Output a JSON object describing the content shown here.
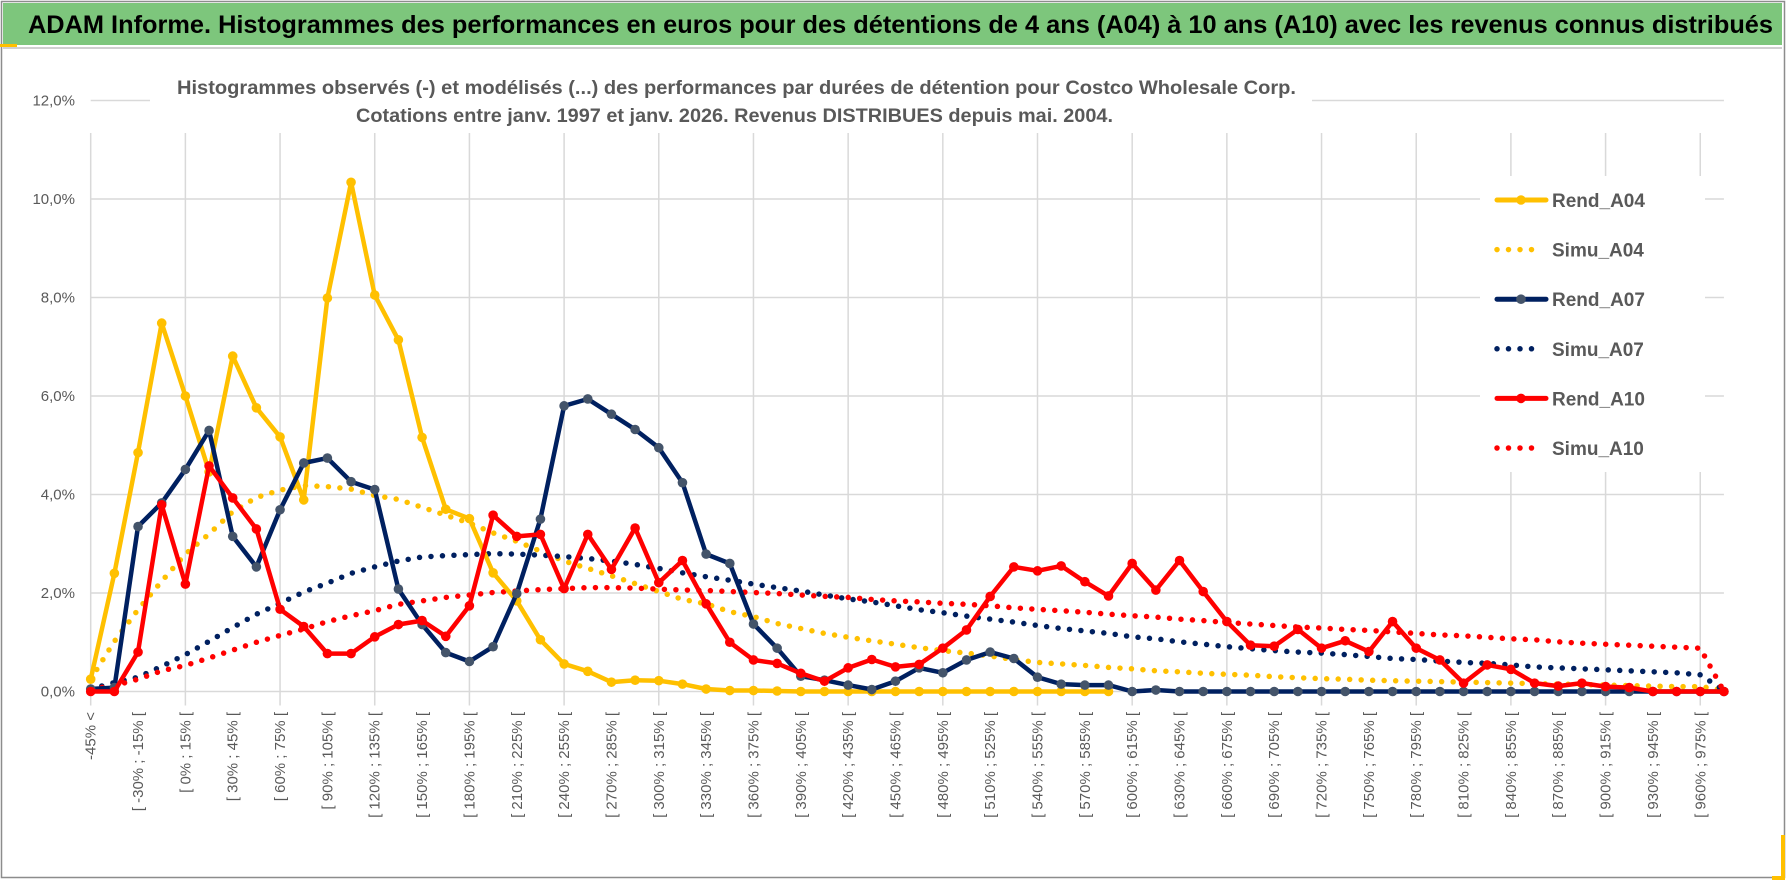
{
  "header": {
    "title": "ADAM Informe. Histogrammes des performances en euros pour des détentions de 4 ans (A04) à 10 ans (A10) avec les revenus connus distribués"
  },
  "colors": {
    "header_bg": "#7DC67C",
    "yellow": "#FFC000",
    "navy": "#002060",
    "navy_marker": "#44546A",
    "red": "#FF0000",
    "grid": "#D9D9D9",
    "text": "#595959"
  },
  "chart_data": {
    "type": "line",
    "title_line1": "Histogrammes observés (-) et modélisés (...) des performances par durées de détention pour Costco Wholesale Corp.",
    "title_line2": "Cotations entre janv. 1997 et janv. 2026. Revenus DISTRIBUES depuis mai. 2004.",
    "xlabel": "",
    "ylabel": "",
    "ylim": [
      0,
      12
    ],
    "y_ticks": [
      "0,0%",
      "2,0%",
      "4,0%",
      "6,0%",
      "8,0%",
      "10,0%",
      "12,0%"
    ],
    "x_bin_count": 70,
    "x_tick_every": 2,
    "x_tick_labels": [
      "-45% <",
      "[ -30% ; -15% [",
      "[ 0% ; 15% [",
      "[ 30% ; 45% [",
      "[ 60% ; 75% [",
      "[ 90% ; 105% [",
      "[ 120% ; 135% [",
      "[ 150% ; 165% [",
      "[ 180% ; 195% [",
      "[ 210% ; 225% [",
      "[ 240% ; 255% [",
      "[ 270% ; 285% [",
      "[ 300% ; 315% [",
      "[ 330% ; 345% [",
      "[ 360% ; 375% [",
      "[ 390% ; 405% [",
      "[ 420% ; 435% [",
      "[ 450% ; 465% [",
      "[ 480% ; 495% [",
      "[ 510% ; 525% [",
      "[ 540% ; 555% [",
      "[ 570% ; 585% [",
      "[ 600% ; 615% [",
      "[ 630% ; 645% [",
      "[ 660% ; 675% [",
      "[ 690% ; 705% [",
      "[ 720% ; 735% [",
      "[ 750% ; 765% [",
      "[ 780% ; 795% [",
      "[ 810% ; 825% [",
      "[ 840% ; 855% [",
      "[ 870% ; 885% [",
      "[ 900% ; 915% [",
      "[ 930% ; 945% [",
      "[ 960% ; 975% ["
    ],
    "grid": true,
    "legend_position": "right",
    "series": [
      {
        "name": "Rend_A04",
        "style": "solid",
        "color": "#FFC000",
        "marker": "#FFC000",
        "values": [
          0.25,
          2.4,
          4.85,
          7.48,
          6.0,
          4.46,
          6.81,
          5.76,
          5.17,
          3.89,
          7.99,
          10.34,
          8.05,
          7.14,
          5.16,
          3.7,
          3.51,
          2.41,
          1.84,
          1.05,
          0.56,
          0.41,
          0.19,
          0.23,
          0.22,
          0.15,
          0.05,
          0.02,
          0.02,
          0.01,
          0,
          0,
          0,
          0,
          0,
          0,
          0,
          0,
          0,
          0,
          0,
          0,
          0,
          0,
          null,
          null,
          null,
          null,
          null,
          null,
          null,
          null,
          null,
          null,
          null,
          null,
          null,
          null,
          null,
          null,
          null,
          null,
          null,
          null,
          null,
          null,
          null,
          null,
          null,
          null
        ]
      },
      {
        "name": "Simu_A04",
        "style": "dotted",
        "color": "#FFC000",
        "values": [
          0.25,
          1.02,
          1.66,
          2.24,
          2.79,
          3.2,
          3.65,
          3.94,
          4.09,
          4.18,
          4.16,
          4.11,
          3.98,
          3.9,
          3.74,
          3.58,
          3.42,
          3.22,
          3.05,
          2.85,
          2.65,
          2.5,
          2.35,
          2.19,
          2.03,
          1.87,
          1.78,
          1.62,
          1.52,
          1.38,
          1.28,
          1.18,
          1.1,
          1.03,
          0.96,
          0.89,
          0.83,
          0.78,
          0.72,
          0.65,
          0.59,
          0.56,
          0.53,
          0.49,
          0.46,
          0.42,
          0.4,
          0.37,
          0.35,
          0.33,
          0.3,
          0.28,
          0.26,
          0.25,
          0.23,
          0.22,
          0.21,
          0.2,
          0.19,
          0.18,
          0.17,
          0.16,
          0.15,
          0.14,
          0.13,
          0.12,
          0.11,
          0.1,
          0.1,
          0.03
        ]
      },
      {
        "name": "Rend_A07",
        "style": "solid",
        "color": "#002060",
        "marker": "#44546A",
        "values": [
          0.05,
          0.08,
          3.35,
          3.83,
          4.51,
          5.3,
          3.15,
          2.53,
          3.69,
          4.64,
          4.74,
          4.26,
          4.1,
          2.08,
          1.36,
          0.79,
          0.61,
          0.91,
          1.99,
          3.5,
          5.8,
          5.94,
          5.63,
          5.32,
          4.95,
          4.24,
          2.79,
          2.6,
          1.37,
          0.88,
          0.31,
          0.23,
          0.13,
          0.04,
          0.21,
          0.48,
          0.38,
          0.64,
          0.8,
          0.67,
          0.29,
          0.15,
          0.13,
          0.13,
          0,
          0.03,
          0,
          0,
          0,
          0,
          0,
          0,
          0,
          0,
          0,
          0,
          0,
          0,
          0,
          0,
          0,
          0,
          0,
          0,
          0,
          0,
          0,
          0,
          0,
          0
        ]
      },
      {
        "name": "Simu_A07",
        "style": "dotted",
        "color": "#002060",
        "values": [
          0.05,
          0.18,
          0.29,
          0.51,
          0.75,
          1.02,
          1.3,
          1.57,
          1.79,
          2.02,
          2.2,
          2.4,
          2.53,
          2.65,
          2.73,
          2.76,
          2.78,
          2.8,
          2.79,
          2.77,
          2.74,
          2.7,
          2.65,
          2.58,
          2.5,
          2.41,
          2.33,
          2.26,
          2.18,
          2.11,
          2.04,
          1.96,
          1.88,
          1.82,
          1.74,
          1.66,
          1.6,
          1.53,
          1.47,
          1.41,
          1.34,
          1.28,
          1.23,
          1.18,
          1.11,
          1.07,
          1.01,
          0.96,
          0.91,
          0.87,
          0.83,
          0.8,
          0.78,
          0.75,
          0.71,
          0.67,
          0.65,
          0.62,
          0.59,
          0.57,
          0.54,
          0.5,
          0.48,
          0.46,
          0.44,
          0.42,
          0.4,
          0.38,
          0.34,
          0.02
        ]
      },
      {
        "name": "Rend_A10",
        "style": "solid",
        "color": "#FF0000",
        "marker": "#FF0000",
        "values": [
          0,
          0,
          0.8,
          3.79,
          2.18,
          4.58,
          3.93,
          3.3,
          1.67,
          1.32,
          0.77,
          0.77,
          1.11,
          1.36,
          1.44,
          1.12,
          1.74,
          3.58,
          3.15,
          3.19,
          2.09,
          3.19,
          2.48,
          3.32,
          2.21,
          2.66,
          1.78,
          1.0,
          0.64,
          0.57,
          0.37,
          0.21,
          0.48,
          0.65,
          0.5,
          0.55,
          0.88,
          1.25,
          1.93,
          2.53,
          2.45,
          2.55,
          2.23,
          1.94,
          2.6,
          2.06,
          2.66,
          2.03,
          1.42,
          0.94,
          0.92,
          1.26,
          0.88,
          1.03,
          0.81,
          1.42,
          0.88,
          0.64,
          0.17,
          0.54,
          0.45,
          0.17,
          0.11,
          0.17,
          0.1,
          0.08,
          0,
          0,
          0,
          0
        ]
      },
      {
        "name": "Simu_A10",
        "style": "dotted",
        "color": "#FF0000",
        "values": [
          0.05,
          0.12,
          0.25,
          0.42,
          0.53,
          0.68,
          0.84,
          1.0,
          1.14,
          1.27,
          1.42,
          1.54,
          1.64,
          1.77,
          1.84,
          1.91,
          1.96,
          2.01,
          2.04,
          2.07,
          2.09,
          2.11,
          2.11,
          2.1,
          2.08,
          2.06,
          2.05,
          2.03,
          2.01,
          1.99,
          1.96,
          1.93,
          1.91,
          1.87,
          1.84,
          1.82,
          1.79,
          1.77,
          1.74,
          1.7,
          1.67,
          1.64,
          1.61,
          1.57,
          1.54,
          1.51,
          1.47,
          1.44,
          1.4,
          1.37,
          1.34,
          1.31,
          1.29,
          1.26,
          1.24,
          1.21,
          1.18,
          1.15,
          1.13,
          1.1,
          1.07,
          1.05,
          1.01,
          0.98,
          0.96,
          0.94,
          0.92,
          0.9,
          0.88,
          0.0
        ]
      }
    ]
  }
}
